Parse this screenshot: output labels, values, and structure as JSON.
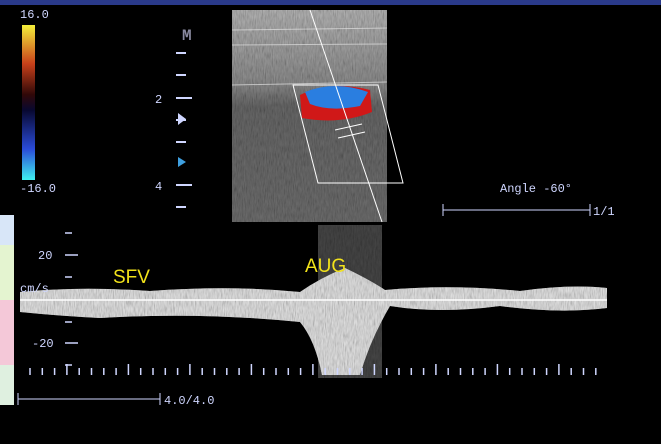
{
  "color_scale": {
    "max": "16.0",
    "min": "-16.0"
  },
  "depth_scale": {
    "marker": "M",
    "labels": [
      "2",
      "4"
    ]
  },
  "angle": "Angle -60°",
  "frame": "1/1",
  "spectrum": {
    "scale_labels": [
      "20",
      "cm/s",
      "-20"
    ],
    "annotations": [
      "SFV",
      "AUG"
    ],
    "sweep": "4.0/4.0"
  }
}
